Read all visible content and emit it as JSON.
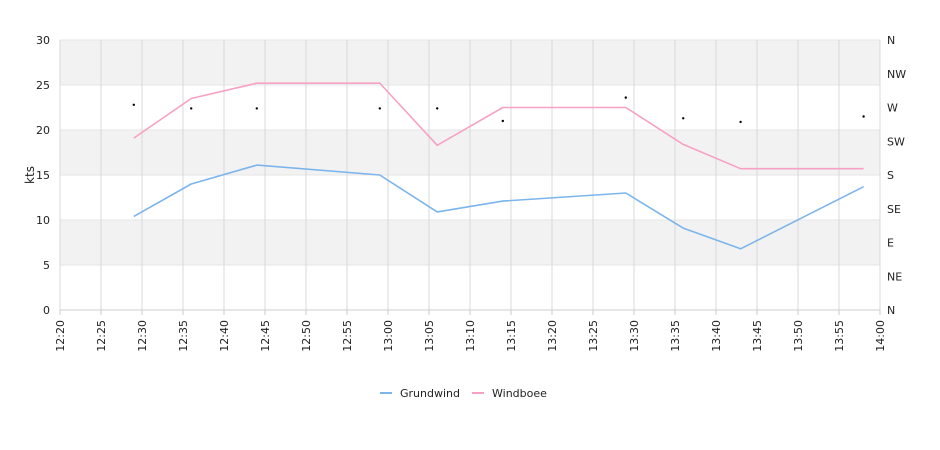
{
  "chart_data": {
    "type": "line",
    "ylabel": "kts",
    "ylim": [
      0,
      30
    ],
    "y_ticks": [
      "0",
      "5",
      "10",
      "15",
      "20",
      "25",
      "30"
    ],
    "right_axis_ticks": [
      "N",
      "NE",
      "E",
      "SE",
      "S",
      "SW",
      "W",
      "NW",
      "N"
    ],
    "x_ticks": [
      "12:20",
      "12:25",
      "12:30",
      "12:35",
      "12:40",
      "12:45",
      "12:50",
      "12:55",
      "13:00",
      "13:05",
      "13:10",
      "13:15",
      "13:20",
      "13:25",
      "13:30",
      "13:35",
      "13:40",
      "13:45",
      "13:50",
      "13:55",
      "14:00"
    ],
    "x_range": [
      "12:20",
      "14:00"
    ],
    "grid": true,
    "legend_position": "bottom",
    "series": [
      {
        "name": "Grundwind",
        "color": "#7cb5ec",
        "points": [
          {
            "x": "12:29",
            "y": 10.4
          },
          {
            "x": "12:36",
            "y": 14.0
          },
          {
            "x": "12:44",
            "y": 16.1
          },
          {
            "x": "12:59",
            "y": 15.0
          },
          {
            "x": "13:06",
            "y": 10.9
          },
          {
            "x": "13:14",
            "y": 12.1
          },
          {
            "x": "13:29",
            "y": 13.0
          },
          {
            "x": "13:36",
            "y": 9.1
          },
          {
            "x": "13:43",
            "y": 6.8
          },
          {
            "x": "13:58",
            "y": 13.7
          }
        ]
      },
      {
        "name": "Windboee",
        "color": "#f7a1c4",
        "points": [
          {
            "x": "12:29",
            "y": 19.1
          },
          {
            "x": "12:36",
            "y": 23.5
          },
          {
            "x": "12:44",
            "y": 25.2
          },
          {
            "x": "12:59",
            "y": 25.2
          },
          {
            "x": "13:06",
            "y": 18.3
          },
          {
            "x": "13:14",
            "y": 22.5
          },
          {
            "x": "13:29",
            "y": 22.5
          },
          {
            "x": "13:36",
            "y": 18.4
          },
          {
            "x": "13:43",
            "y": 15.7
          },
          {
            "x": "13:58",
            "y": 15.7
          }
        ]
      }
    ],
    "direction_markers": [
      {
        "x": "12:29",
        "y": 22.8
      },
      {
        "x": "12:36",
        "y": 22.4
      },
      {
        "x": "12:44",
        "y": 22.4
      },
      {
        "x": "12:59",
        "y": 22.4
      },
      {
        "x": "13:06",
        "y": 22.4
      },
      {
        "x": "13:14",
        "y": 21.0
      },
      {
        "x": "13:29",
        "y": 23.6
      },
      {
        "x": "13:36",
        "y": 21.3
      },
      {
        "x": "13:43",
        "y": 20.9
      },
      {
        "x": "13:58",
        "y": 21.5
      }
    ],
    "colors": {
      "band": "#f2f2f2",
      "gridline": "#d8d8d8",
      "axis": "#cccccc",
      "marker": "#000000"
    }
  }
}
